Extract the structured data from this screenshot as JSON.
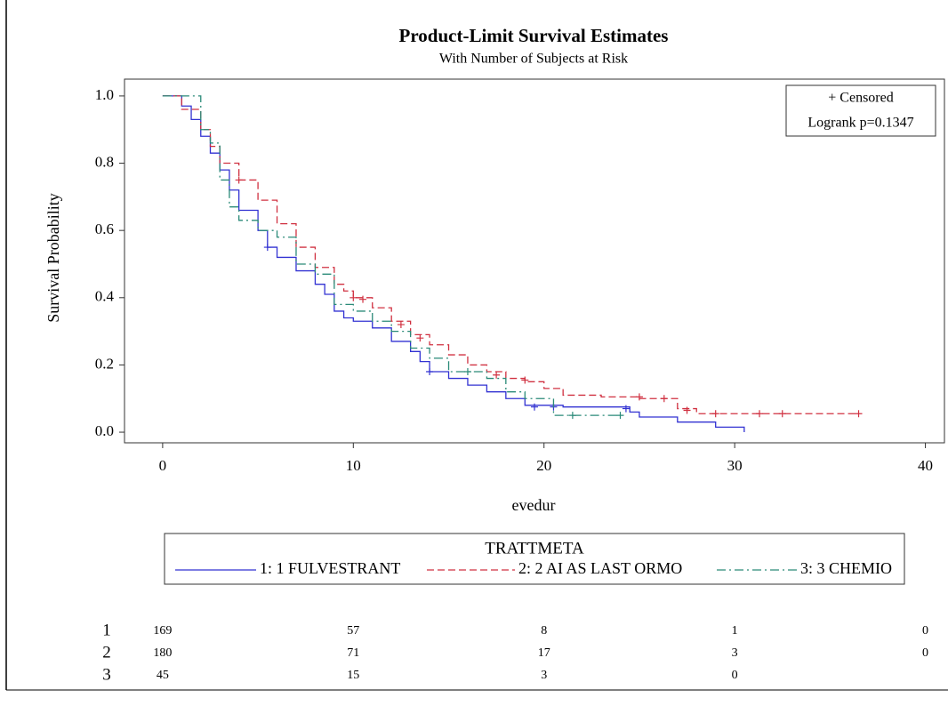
{
  "chart_data": {
    "type": "km",
    "title": "Product-Limit Survival Estimates",
    "subtitle": "With Number of Subjects at Risk",
    "x_label": "evedur",
    "y_label": "Survival Probability",
    "xlim": [
      -2,
      41
    ],
    "ylim": [
      -0.0316,
      1.05
    ],
    "xticks": [
      0,
      10,
      20,
      30,
      40
    ],
    "yticks": [
      {
        "value": 0,
        "label": "0.0"
      },
      {
        "value": 0.2,
        "label": "0.2"
      },
      {
        "value": 0.4,
        "label": "0.4"
      },
      {
        "value": 0.6,
        "label": "0.6"
      },
      {
        "value": 0.8,
        "label": "0.8"
      },
      {
        "value": 1,
        "label": "1.0"
      }
    ],
    "inset": [
      "+ Censored",
      "Logrank p=0.1347"
    ],
    "legend_title": "TRATTMETA",
    "series": [
      {
        "name": "1: 1 FULVESTRANT",
        "color": "#3232d2",
        "dash": "solid",
        "x": [
          0,
          1,
          1.5,
          2,
          2.5,
          3,
          3.5,
          4,
          5,
          5.5,
          6,
          7,
          8,
          8.5,
          9,
          9.5,
          10,
          11,
          12,
          13,
          13.5,
          14,
          15,
          16,
          17,
          18,
          19,
          21,
          24.5,
          25,
          27,
          29,
          30.5
        ],
        "values": [
          1,
          0.97,
          0.93,
          0.88,
          0.83,
          0.78,
          0.72,
          0.66,
          0.6,
          0.55,
          0.52,
          0.48,
          0.44,
          0.41,
          0.36,
          0.34,
          0.33,
          0.31,
          0.27,
          0.24,
          0.21,
          0.18,
          0.16,
          0.14,
          0.12,
          0.1,
          0.08,
          0.075,
          0.06,
          0.045,
          0.03,
          0.015,
          0
        ],
        "censored_x": [
          5.5,
          14,
          19.5,
          20.5,
          24.3
        ],
        "censored_y": [
          0.55,
          0.18,
          0.075,
          0.075,
          0.07
        ]
      },
      {
        "name": "2: 2 AI AS LAST ORMO",
        "color": "#d03040",
        "dash": "dashed",
        "x": [
          0,
          1,
          2,
          2.5,
          3,
          4,
          5,
          6,
          7,
          8,
          9,
          9.5,
          10,
          11,
          12,
          13,
          14,
          15,
          16,
          17,
          18,
          19,
          20,
          21,
          23,
          25,
          27,
          28,
          36.5
        ],
        "values": [
          1,
          0.96,
          0.9,
          0.85,
          0.8,
          0.75,
          0.69,
          0.62,
          0.55,
          0.49,
          0.44,
          0.42,
          0.4,
          0.37,
          0.33,
          0.29,
          0.26,
          0.23,
          0.2,
          0.18,
          0.16,
          0.15,
          0.13,
          0.11,
          0.105,
          0.1,
          0.07,
          0.055,
          0.055
        ],
        "censored_x": [
          4,
          10,
          10.5,
          12.5,
          13.5,
          17.5,
          19,
          25,
          26.3,
          27.5,
          29,
          31.3,
          32.5,
          36.5
        ],
        "censored_y": [
          0.75,
          0.4,
          0.395,
          0.32,
          0.28,
          0.17,
          0.155,
          0.105,
          0.1,
          0.065,
          0.055,
          0.055,
          0.055,
          0.055
        ]
      },
      {
        "name": "3: 3 CHEMIO",
        "color": "#2a8a78",
        "dash": "dashdot",
        "x": [
          0,
          2,
          2.5,
          3,
          3.5,
          4,
          5,
          6,
          7,
          8,
          9,
          10,
          11,
          12,
          13,
          14,
          15,
          17,
          18,
          19,
          20.5,
          24
        ],
        "values": [
          1,
          0.9,
          0.86,
          0.75,
          0.67,
          0.63,
          0.6,
          0.58,
          0.5,
          0.47,
          0.38,
          0.36,
          0.33,
          0.3,
          0.25,
          0.22,
          0.18,
          0.16,
          0.12,
          0.1,
          0.05,
          0.05
        ],
        "censored_x": [
          16,
          21.5,
          24
        ],
        "censored_y": [
          0.18,
          0.05,
          0.05
        ]
      }
    ],
    "at_risk": [
      {
        "label": "1",
        "counts": [
          169,
          57,
          8,
          1,
          0
        ]
      },
      {
        "label": "2",
        "counts": [
          180,
          71,
          17,
          3,
          0
        ]
      },
      {
        "label": "3",
        "counts": [
          45,
          15,
          3,
          0,
          null
        ]
      }
    ]
  }
}
